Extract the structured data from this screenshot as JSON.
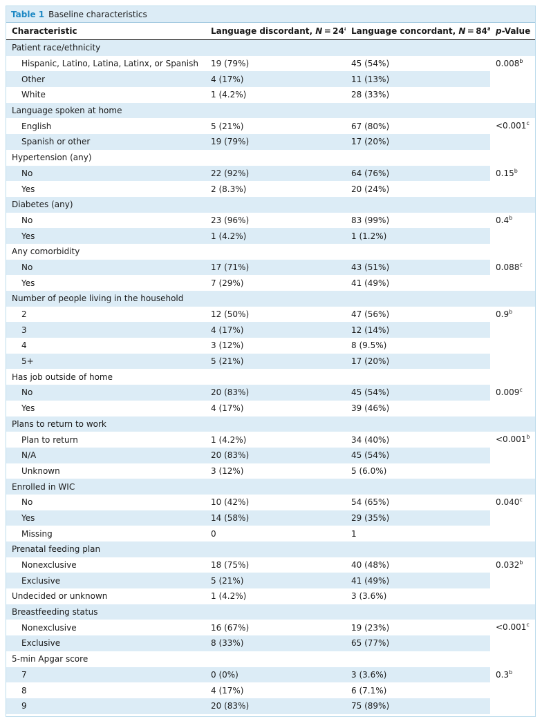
{
  "caption": {
    "label": "Table 1",
    "title": "Baseline characteristics"
  },
  "header": {
    "characteristic": "Characteristic",
    "discordant": "Language discordant, ",
    "discordant_n": "N",
    "discordant_eq": " = 24",
    "concordant": "Language concordant, ",
    "concordant_n": "N",
    "concordant_eq": " = 84",
    "fn_a": "a",
    "p_italic": "p",
    "p_rest": "-Value"
  },
  "groups": [
    {
      "label": "Patient race/ethnicity",
      "p": "0.008",
      "fn": "b",
      "rows": [
        {
          "label": "Hispanic, Latino, Latina, Latinx, or Spanish",
          "d": "19 (79%)",
          "c": "45 (54%)"
        },
        {
          "label": "Other",
          "d": "4 (17%)",
          "c": "11 (13%)"
        },
        {
          "label": "White",
          "d": "1 (4.2%)",
          "c": "28 (33%)"
        }
      ]
    },
    {
      "label": "Language spoken at home",
      "p": "<0.001",
      "fn": "c",
      "rows": [
        {
          "label": "English",
          "d": "5 (21%)",
          "c": "67 (80%)"
        },
        {
          "label": "Spanish or other",
          "d": "19 (79%)",
          "c": "17 (20%)"
        }
      ]
    },
    {
      "label": "Hypertension (any)",
      "p": "0.15",
      "fn": "b",
      "rows": [
        {
          "label": "No",
          "d": "22 (92%)",
          "c": "64 (76%)"
        },
        {
          "label": "Yes",
          "d": "2 (8.3%)",
          "c": "20 (24%)"
        }
      ]
    },
    {
      "label": "Diabetes (any)",
      "p": "0.4",
      "fn": "b",
      "rows": [
        {
          "label": "No",
          "d": "23 (96%)",
          "c": "83 (99%)"
        },
        {
          "label": "Yes",
          "d": "1 (4.2%)",
          "c": "1 (1.2%)"
        }
      ]
    },
    {
      "label": "Any comorbidity",
      "p": "0.088",
      "fn": "c",
      "rows": [
        {
          "label": "No",
          "d": "17 (71%)",
          "c": "43 (51%)"
        },
        {
          "label": "Yes",
          "d": "7 (29%)",
          "c": "41 (49%)"
        }
      ]
    },
    {
      "label": "Number of people living in the household",
      "p": "0.9",
      "fn": "b",
      "rows": [
        {
          "label": "2",
          "d": "12 (50%)",
          "c": "47 (56%)"
        },
        {
          "label": "3",
          "d": "4 (17%)",
          "c": "12 (14%)"
        },
        {
          "label": "4",
          "d": "3 (12%)",
          "c": "8 (9.5%)"
        },
        {
          "label": "5+",
          "d": "5 (21%)",
          "c": "17 (20%)"
        }
      ]
    },
    {
      "label": "Has job outside of home",
      "p": "0.009",
      "fn": "c",
      "rows": [
        {
          "label": "No",
          "d": "20 (83%)",
          "c": "45 (54%)"
        },
        {
          "label": "Yes",
          "d": "4 (17%)",
          "c": "39 (46%)"
        }
      ]
    },
    {
      "label": "Plans to return to work",
      "p": "<0.001",
      "fn": "b",
      "rows": [
        {
          "label": "Plan to return",
          "d": "1 (4.2%)",
          "c": "34 (40%)"
        },
        {
          "label": "N/A",
          "d": "20 (83%)",
          "c": "45 (54%)"
        },
        {
          "label": "Unknown",
          "d": "3 (12%)",
          "c": "5 (6.0%)"
        }
      ]
    },
    {
      "label": "Enrolled in WIC",
      "p": "0.040",
      "fn": "c",
      "rows": [
        {
          "label": "No",
          "d": "10 (42%)",
          "c": "54 (65%)"
        },
        {
          "label": "Yes",
          "d": "14 (58%)",
          "c": "29 (35%)"
        },
        {
          "label": "Missing",
          "d": "0",
          "c": "1"
        }
      ]
    },
    {
      "label": "Prenatal feeding plan",
      "p": "0.032",
      "fn": "b",
      "rows": [
        {
          "label": "Nonexclusive",
          "d": "18 (75%)",
          "c": "40 (48%)"
        },
        {
          "label": "Exclusive",
          "d": "5 (21%)",
          "c": "41 (49%)"
        },
        {
          "label": "Undecided or unknown",
          "d": "1 (4.2%)",
          "c": "3 (3.6%)",
          "flush": true
        }
      ]
    },
    {
      "label": "Breastfeeding status",
      "p": "<0.001",
      "fn": "c",
      "rows": [
        {
          "label": "Nonexclusive",
          "d": "16 (67%)",
          "c": "19 (23%)"
        },
        {
          "label": "Exclusive",
          "d": "8 (33%)",
          "c": "65 (77%)"
        }
      ]
    },
    {
      "label": "5-min Apgar score",
      "p": "0.3",
      "fn": "b",
      "rows": [
        {
          "label": "7",
          "d": "0 (0%)",
          "c": "3 (3.6%)"
        },
        {
          "label": "8",
          "d": "4 (17%)",
          "c": "6 (7.1%)"
        },
        {
          "label": "9",
          "d": "20 (83%)",
          "c": "75 (89%)"
        }
      ]
    }
  ]
}
